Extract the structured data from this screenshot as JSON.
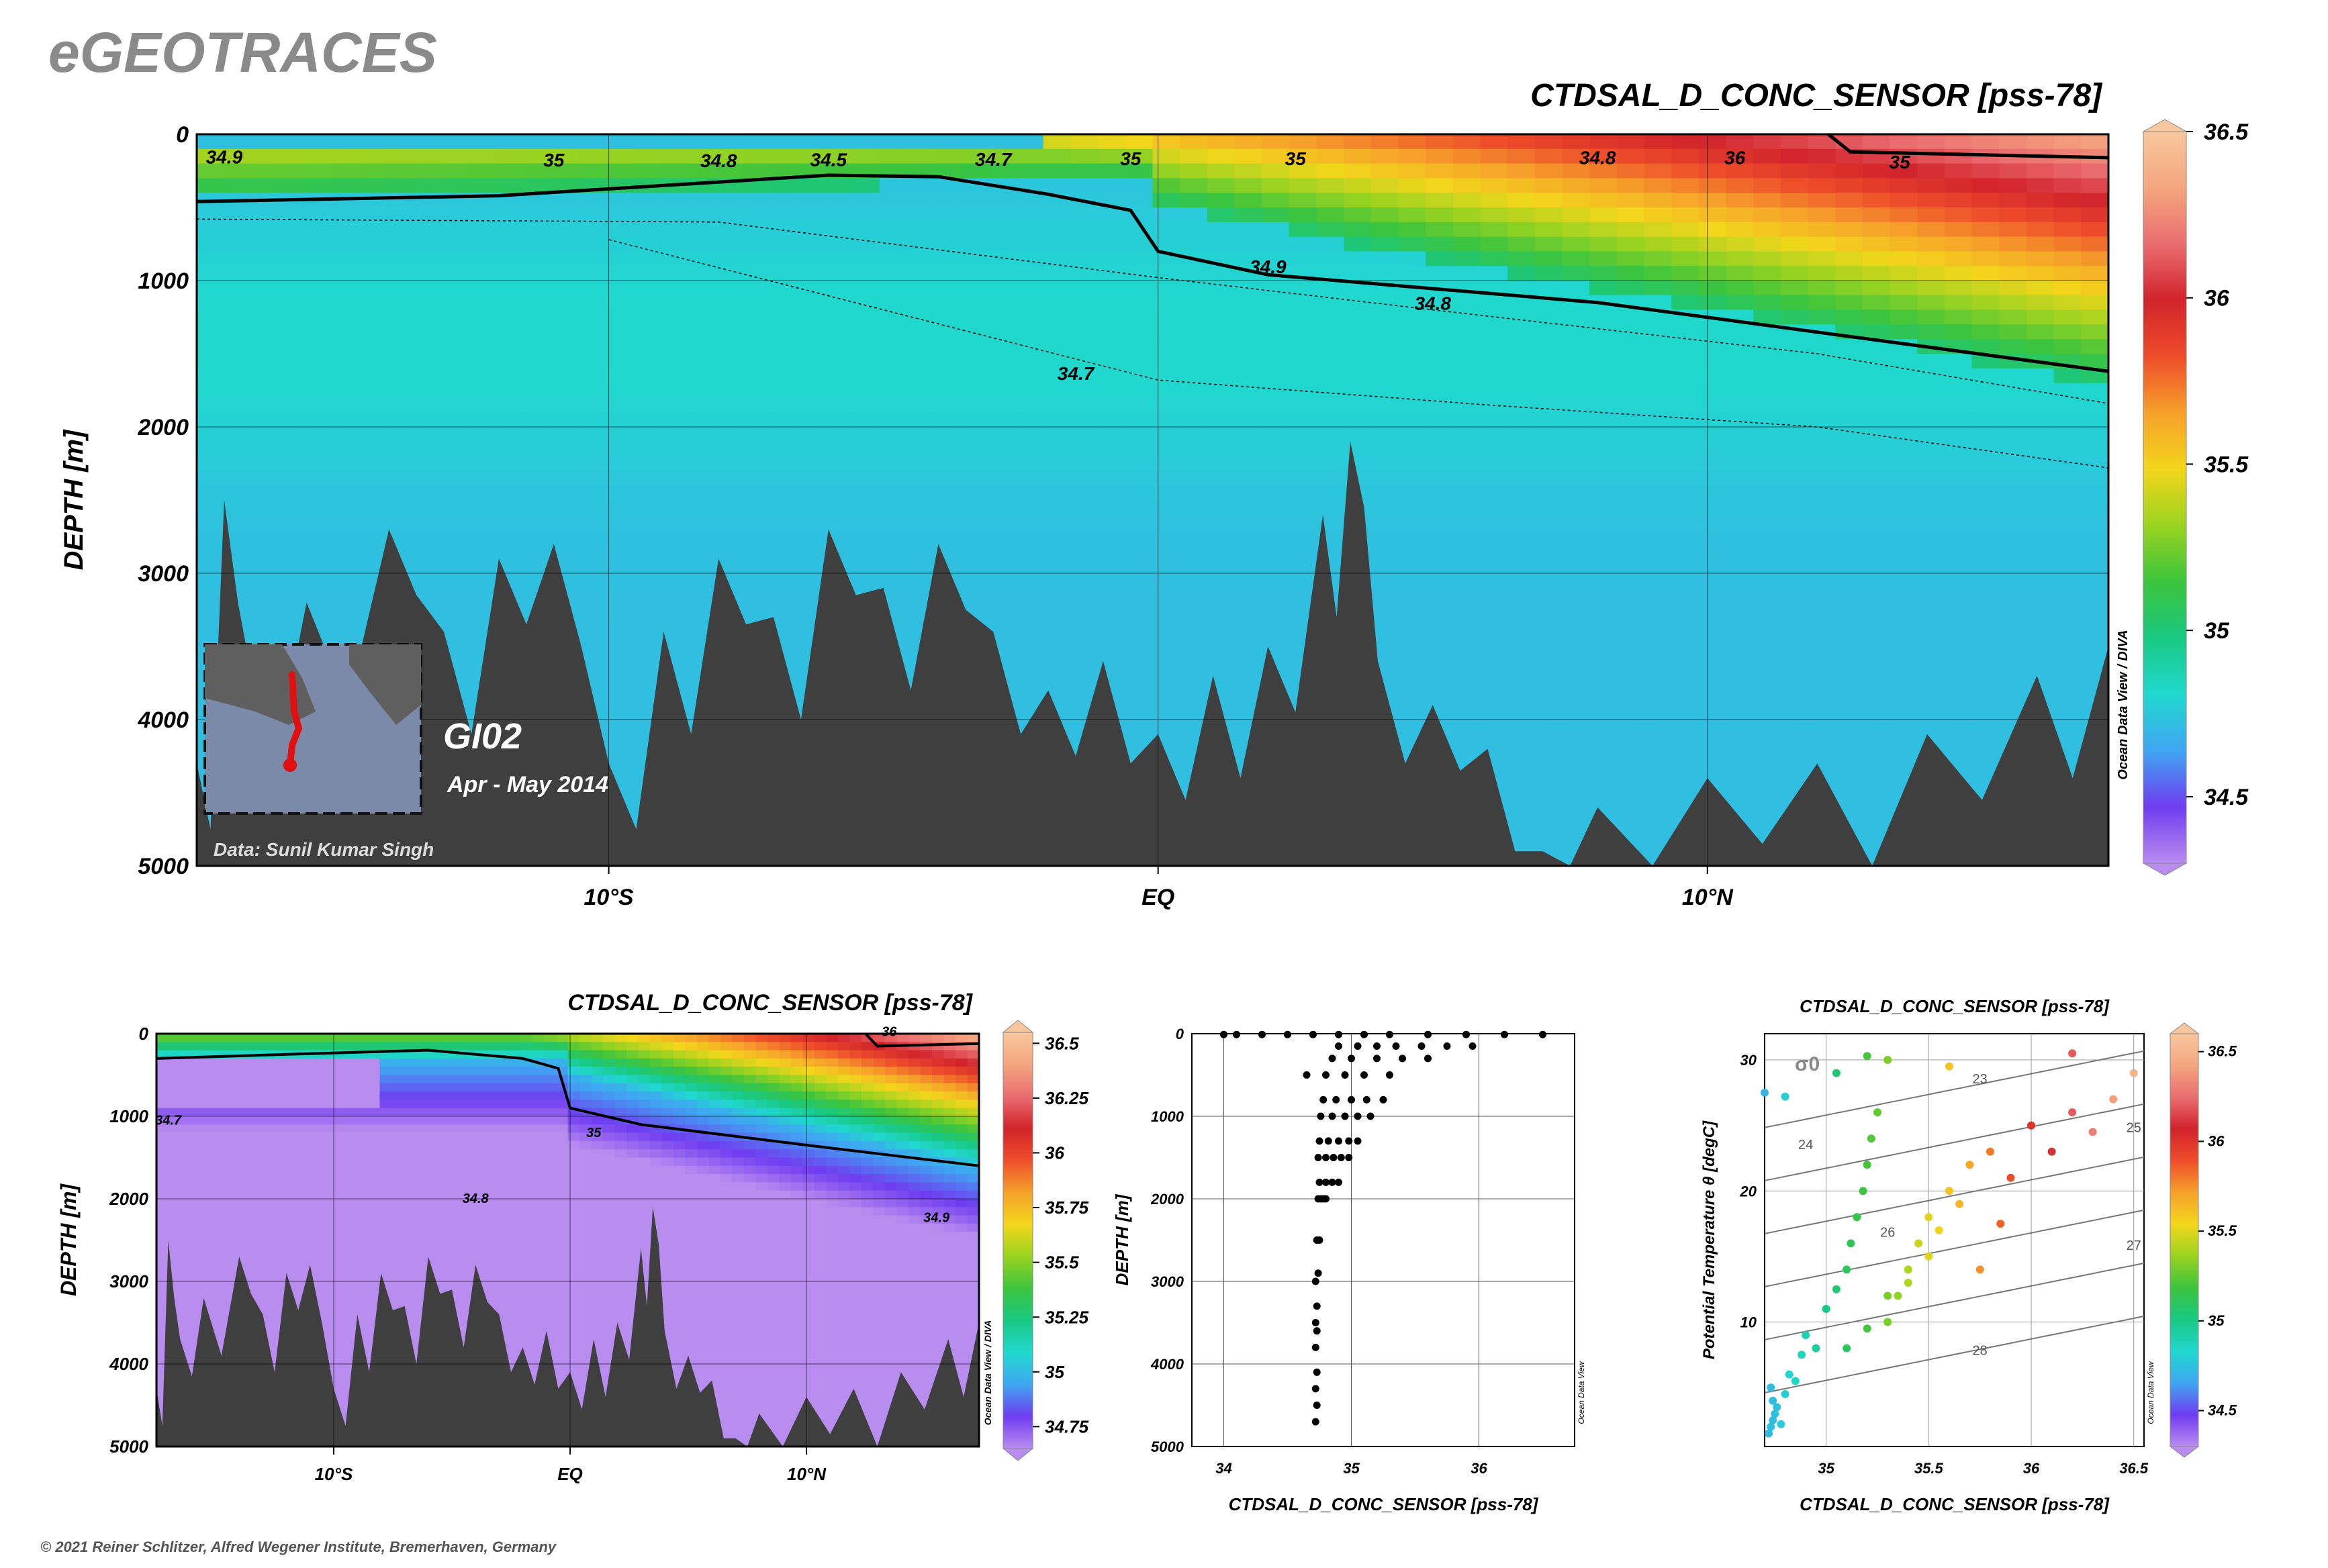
{
  "brand": "eGEOTRACES",
  "footer": "© 2021 Reiner Schlitzer, Alfred Wegener Institute, Bremerhaven, Germany",
  "colormap": [
    "#b98cf0",
    "#6f3cf0",
    "#3fa6f2",
    "#20d8cf",
    "#18c882",
    "#3cc43c",
    "#9ad320",
    "#f3d61b",
    "#f6a12a",
    "#ee4d2a",
    "#d2232b",
    "#ea6d70",
    "#f4a67e",
    "#f9c79d"
  ],
  "bathy_color": "#3f3f3f",
  "main_section": {
    "title": "CTDSAL_D_CONC_SENSOR [pss-78]",
    "ylabel": "DEPTH [m]",
    "yticks": [
      "0",
      "1000",
      "2000",
      "3000",
      "4000",
      "5000"
    ],
    "xticks": [
      "10°S",
      "EQ",
      "10°N"
    ],
    "cruise": "GI02",
    "period": "Apr - May 2014",
    "credit": "Data: Sunil Kumar Singh",
    "odv": "Ocean Data View / DIVA",
    "colorbar_ticks": [
      "36.5",
      "36",
      "35.5",
      "35",
      "34.5"
    ],
    "contour_labels": [
      "34.9",
      "35",
      "34.8",
      "34.5",
      "34.7",
      "35",
      "35",
      "34.8",
      "36",
      "35",
      "34.9",
      "34.8",
      "34.7"
    ]
  },
  "bottom_left": {
    "title": "CTDSAL_D_CONC_SENSOR [pss-78]",
    "ylabel": "DEPTH [m]",
    "yticks": [
      "0",
      "1000",
      "2000",
      "3000",
      "4000",
      "5000"
    ],
    "xticks": [
      "10°S",
      "EQ",
      "10°N"
    ],
    "odv": "Ocean Data View / DIVA",
    "colorbar_ticks": [
      "36.5",
      "36.25",
      "36",
      "35.75",
      "35.5",
      "35.25",
      "35",
      "34.75"
    ],
    "contour_labels": [
      "36",
      "35",
      "34.8",
      "34.9",
      "34.7"
    ]
  },
  "bottom_middle": {
    "xlabel": "CTDSAL_D_CONC_SENSOR [pss-78]",
    "ylabel": "DEPTH [m]",
    "yticks": [
      "0",
      "1000",
      "2000",
      "3000",
      "4000",
      "5000"
    ],
    "xticks": [
      "34",
      "35",
      "36"
    ],
    "odv": "Ocean Data View"
  },
  "bottom_right": {
    "title": "CTDSAL_D_CONC_SENSOR [pss-78]",
    "xlabel": "CTDSAL_D_CONC_SENSOR [pss-78]",
    "ylabel": "Potential Temperature θ [degC]",
    "xticks": [
      "35",
      "35.5",
      "36",
      "36.5"
    ],
    "yticks": [
      "30",
      "20",
      "10"
    ],
    "sigma_label": "σ0",
    "isopycnal_labels": [
      "23",
      "24",
      "25",
      "26",
      "27",
      "28"
    ],
    "odv": "Ocean Data View",
    "colorbar_ticks": [
      "36.5",
      "36",
      "35.5",
      "35",
      "34.5"
    ]
  },
  "chart_data": [
    {
      "type": "heatmap",
      "title": "CTDSAL_D_CONC_SENSOR [pss-78]",
      "xlabel": "",
      "ylabel": "DEPTH [m]",
      "xlim": [
        -17.5,
        17.3
      ],
      "ylim": [
        5000,
        0
      ],
      "clim": [
        34.3,
        36.5
      ],
      "contours": [
        {
          "level": 35,
          "points": [
            [
              -17.5,
              460
            ],
            [
              -12,
              420
            ],
            [
              -6,
              280
            ],
            [
              -4,
              290
            ],
            [
              -2,
              410
            ],
            [
              -0.5,
              520
            ],
            [
              0,
              800
            ],
            [
              2,
              960
            ],
            [
              8,
              1150
            ],
            [
              17.3,
              1620
            ]
          ]
        },
        {
          "level": 36,
          "points": [
            [
              12.2,
              0
            ],
            [
              12.6,
              120
            ],
            [
              17.3,
              160
            ]
          ]
        },
        {
          "level": 34.9,
          "points": [
            [
              -17.5,
              580
            ],
            [
              -8,
              600
            ],
            [
              0,
              980
            ],
            [
              5,
              1200
            ],
            [
              12,
              1500
            ],
            [
              17.3,
              1840
            ]
          ]
        },
        {
          "level": 34.8,
          "points": [
            [
              -10,
              720
            ],
            [
              -5,
              1200
            ],
            [
              0,
              1680
            ],
            [
              6,
              1850
            ],
            [
              12,
              2000
            ],
            [
              17.3,
              2280
            ]
          ]
        }
      ],
      "bathymetry_depth_m": [
        [
          -17.5,
          4300
        ],
        [
          -17,
          2500
        ],
        [
          -16.5,
          3700
        ],
        [
          -15.5,
          3200
        ],
        [
          -14,
          2700
        ],
        [
          -13,
          3400
        ],
        [
          -12,
          2900
        ],
        [
          -11,
          2800
        ],
        [
          -10,
          4300
        ],
        [
          -9,
          3400
        ],
        [
          -8,
          2900
        ],
        [
          -7,
          3300
        ],
        [
          -6,
          2700
        ],
        [
          -5,
          3100
        ],
        [
          -4,
          2800
        ],
        [
          -3,
          3400
        ],
        [
          -2,
          3800
        ],
        [
          -1,
          3600
        ],
        [
          0,
          4100
        ],
        [
          1,
          3700
        ],
        [
          2,
          3500
        ],
        [
          3,
          2600
        ],
        [
          3.5,
          2100
        ],
        [
          4,
          3600
        ],
        [
          5,
          3900
        ],
        [
          6,
          4200
        ],
        [
          7,
          4900
        ],
        [
          8,
          4600
        ],
        [
          10,
          4400
        ],
        [
          12,
          4300
        ],
        [
          14,
          4100
        ],
        [
          16,
          3700
        ],
        [
          17.3,
          3500
        ]
      ]
    },
    {
      "type": "heatmap",
      "title": "CTDSAL_D_CONC_SENSOR [pss-78]",
      "xlabel": "",
      "ylabel": "DEPTH [m]",
      "xlim": [
        -17.5,
        17.3
      ],
      "ylim": [
        5000,
        0
      ],
      "clim": [
        34.65,
        36.55
      ],
      "contours": [
        {
          "level": 35,
          "points": [
            [
              -17.5,
              300
            ],
            [
              -12,
              250
            ],
            [
              -6,
              200
            ],
            [
              -2,
              300
            ],
            [
              -0.5,
              420
            ],
            [
              0,
              900
            ],
            [
              3,
              1100
            ],
            [
              10,
              1350
            ],
            [
              17.3,
              1600
            ]
          ]
        },
        {
          "level": 36,
          "points": [
            [
              12.5,
              0
            ],
            [
              13,
              150
            ],
            [
              17.3,
              120
            ]
          ]
        }
      ]
    },
    {
      "type": "scatter",
      "title": "",
      "xlabel": "CTDSAL_D_CONC_SENSOR [pss-78]",
      "ylabel": "DEPTH [m]",
      "xlim": [
        33.75,
        36.75
      ],
      "ylim": [
        5000,
        0
      ],
      "points": [
        [
          34.72,
          4700
        ],
        [
          34.73,
          4500
        ],
        [
          34.72,
          4300
        ],
        [
          34.73,
          4100
        ],
        [
          34.72,
          3800
        ],
        [
          34.73,
          3600
        ],
        [
          34.72,
          3500
        ],
        [
          34.73,
          3300
        ],
        [
          34.72,
          3000
        ],
        [
          34.74,
          2900
        ],
        [
          34.73,
          2500
        ],
        [
          34.75,
          2500
        ],
        [
          34.74,
          2000
        ],
        [
          34.76,
          2000
        ],
        [
          34.78,
          2000
        ],
        [
          34.8,
          2000
        ],
        [
          34.75,
          1800
        ],
        [
          34.8,
          1800
        ],
        [
          34.85,
          1800
        ],
        [
          34.9,
          1800
        ],
        [
          34.74,
          1500
        ],
        [
          34.8,
          1500
        ],
        [
          34.86,
          1500
        ],
        [
          34.92,
          1500
        ],
        [
          34.98,
          1500
        ],
        [
          34.75,
          1300
        ],
        [
          34.82,
          1300
        ],
        [
          34.9,
          1300
        ],
        [
          34.98,
          1300
        ],
        [
          35.05,
          1300
        ],
        [
          34.76,
          1000
        ],
        [
          34.85,
          1000
        ],
        [
          34.95,
          1000
        ],
        [
          35.05,
          1000
        ],
        [
          35.15,
          1000
        ],
        [
          34.78,
          800
        ],
        [
          34.88,
          800
        ],
        [
          35.0,
          800
        ],
        [
          35.12,
          800
        ],
        [
          35.25,
          800
        ],
        [
          34.65,
          500
        ],
        [
          34.8,
          500
        ],
        [
          34.95,
          500
        ],
        [
          35.1,
          500
        ],
        [
          35.3,
          500
        ],
        [
          34.85,
          300
        ],
        [
          35.0,
          300
        ],
        [
          35.2,
          300
        ],
        [
          35.4,
          300
        ],
        [
          35.6,
          300
        ],
        [
          34.9,
          150
        ],
        [
          35.05,
          150
        ],
        [
          35.2,
          150
        ],
        [
          35.35,
          150
        ],
        [
          35.55,
          150
        ],
        [
          35.75,
          150
        ],
        [
          35.95,
          150
        ],
        [
          34.0,
          10
        ],
        [
          34.1,
          10
        ],
        [
          34.3,
          10
        ],
        [
          34.5,
          10
        ],
        [
          34.7,
          10
        ],
        [
          34.9,
          10
        ],
        [
          35.1,
          10
        ],
        [
          35.3,
          10
        ],
        [
          35.6,
          10
        ],
        [
          35.9,
          10
        ],
        [
          36.2,
          10
        ],
        [
          36.5,
          10
        ]
      ]
    },
    {
      "type": "scatter",
      "title": "CTDSAL_D_CONC_SENSOR [pss-78]",
      "xlabel": "CTDSAL_D_CONC_SENSOR [pss-78]",
      "ylabel": "Potential Temperature θ [degC]",
      "xlim": [
        34.7,
        36.55
      ],
      "ylim": [
        0.5,
        32
      ],
      "clim": [
        34.3,
        36.6
      ],
      "isopycnals": [
        23,
        24,
        25,
        26,
        27,
        28
      ],
      "points": [
        [
          34.72,
          1.5
        ],
        [
          34.73,
          2.0
        ],
        [
          34.74,
          2.5
        ],
        [
          34.75,
          3.0
        ],
        [
          34.74,
          4.0
        ],
        [
          34.73,
          5.0
        ],
        [
          34.76,
          3.5
        ],
        [
          34.78,
          2.2
        ],
        [
          34.8,
          4.5
        ],
        [
          34.82,
          6.0
        ],
        [
          34.85,
          5.5
        ],
        [
          34.88,
          7.5
        ],
        [
          34.9,
          9.0
        ],
        [
          34.95,
          8.0
        ],
        [
          35.0,
          11.0
        ],
        [
          35.05,
          12.5
        ],
        [
          35.1,
          14.0
        ],
        [
          35.12,
          16.0
        ],
        [
          35.15,
          18.0
        ],
        [
          35.18,
          20.0
        ],
        [
          35.2,
          22.0
        ],
        [
          35.22,
          24.0
        ],
        [
          35.25,
          26.0
        ],
        [
          35.3,
          10.0
        ],
        [
          35.35,
          12.0
        ],
        [
          35.4,
          14.0
        ],
        [
          35.45,
          16.0
        ],
        [
          35.5,
          18.0
        ],
        [
          35.6,
          20.0
        ],
        [
          35.7,
          22.0
        ],
        [
          35.8,
          23.0
        ],
        [
          35.9,
          21.0
        ],
        [
          36.0,
          25.0
        ],
        [
          36.2,
          26.0
        ],
        [
          36.4,
          27.0
        ],
        [
          36.5,
          29.0
        ],
        [
          34.7,
          27.5
        ],
        [
          34.8,
          27.2
        ],
        [
          35.05,
          29.0
        ],
        [
          35.2,
          30.3
        ],
        [
          35.3,
          30.0
        ],
        [
          35.6,
          29.5
        ],
        [
          36.2,
          30.5
        ],
        [
          35.1,
          8.0
        ],
        [
          35.2,
          9.5
        ],
        [
          35.3,
          12.0
        ],
        [
          35.4,
          13.0
        ],
        [
          35.5,
          15.0
        ],
        [
          35.55,
          17.0
        ],
        [
          35.65,
          19.0
        ],
        [
          35.75,
          14.0
        ],
        [
          35.85,
          17.5
        ],
        [
          36.1,
          23.0
        ],
        [
          36.3,
          24.5
        ]
      ]
    }
  ]
}
